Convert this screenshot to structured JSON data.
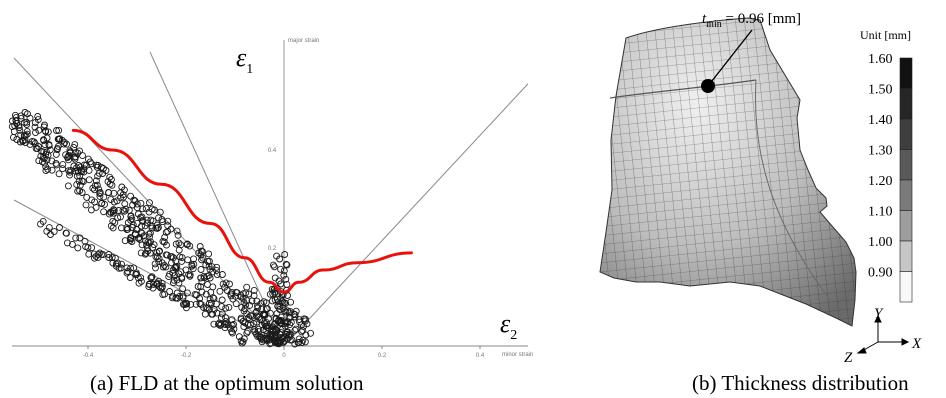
{
  "panel_a": {
    "caption": "(a) FLD at the optimum solution",
    "y_axis_symbol": "ε",
    "y_axis_sub": "1",
    "x_axis_symbol": "ε",
    "x_axis_sub": "2",
    "y_axis_small_label": "major strain",
    "x_axis_small_label": "minor strain",
    "x_ticks": [
      "-0.4",
      "-0.2",
      "0",
      "0.2",
      "0.4"
    ],
    "y_ticks": [
      "0.4",
      "0.2"
    ],
    "flc_color": "#e8120c"
  },
  "panel_b": {
    "caption": "(b) Thickness distribution",
    "annotation_t": "t",
    "annotation_sub": "min",
    "annotation_value": " = 0.96 [mm]",
    "legend_unit": "Unit [mm]",
    "legend_values": [
      "1.60",
      "1.50",
      "1.40",
      "1.30",
      "1.20",
      "1.10",
      "1.00",
      "0.90"
    ],
    "legend_colors": [
      "#111111",
      "#262626",
      "#3e3e3e",
      "#595959",
      "#7a7a7a",
      "#9e9e9e",
      "#c6c6c6",
      "#f8f8f8"
    ],
    "axis_y": "Y",
    "axis_x": "X",
    "axis_z": "Z"
  },
  "chart_data": {
    "type": "scatter",
    "title": "",
    "xlabel": "ε2 (minor strain)",
    "ylabel": "ε1 (major strain)",
    "xlim": [
      -0.55,
      0.55
    ],
    "ylim": [
      -0.02,
      0.6
    ],
    "x_ticks": [
      -0.4,
      -0.2,
      0,
      0.2,
      0.4
    ],
    "y_ticks": [
      0.2,
      0.4
    ],
    "series": [
      {
        "name": "",
        "kind": "line",
        "color": "#e8120c",
        "x": [
          -0.43,
          -0.35,
          -0.25,
          -0.15,
          -0.08,
          -0.03,
          0.0,
          0.03,
          0.08,
          0.15,
          0.26
        ],
        "y": [
          0.44,
          0.4,
          0.33,
          0.25,
          0.18,
          0.13,
          0.11,
          0.13,
          0.155,
          0.17,
          0.19
        ]
      }
    ]
  }
}
